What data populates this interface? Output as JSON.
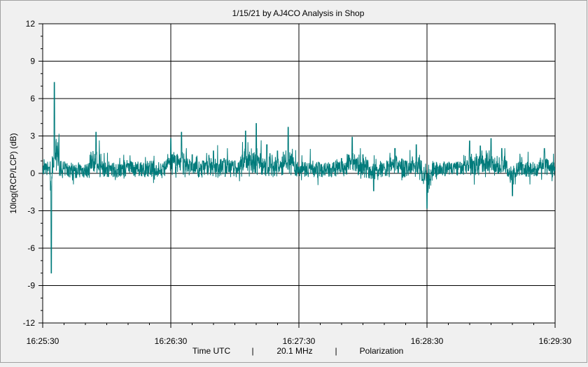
{
  "chart_data": {
    "type": "line",
    "title": "1/15/21  by  AJ4CO Analysis  in  Shop",
    "ylabel": "10log(RCP/LCP) (dB)",
    "xlabel_parts": [
      "Time UTC",
      "20.1 MHz",
      "Polarization"
    ],
    "separator": "|",
    "ylim": [
      -12,
      12
    ],
    "y_ticks": [
      "12",
      "9",
      "6",
      "3",
      "0",
      "-3",
      "-6",
      "-9",
      "-12"
    ],
    "y_tick_values": [
      12,
      9,
      6,
      3,
      0,
      -3,
      -6,
      -9,
      -12
    ],
    "xlim": [
      "16:25:30",
      "16:29:30"
    ],
    "x_ticks": [
      "16:25:30",
      "16:26:30",
      "16:27:30",
      "16:28:30",
      "16:29:30"
    ],
    "grid": true,
    "line_color": "#007b7b",
    "background_color": "#ffffff",
    "series": [
      {
        "x": [
          "16:25:30",
          "16:25:33",
          "16:25:34",
          "16:25:35",
          "16:25:35.5",
          "16:25:40",
          "16:25:45",
          "16:25:55",
          "16:26:00",
          "16:26:05",
          "16:26:10",
          "16:26:15",
          "16:26:20",
          "16:26:25",
          "16:26:30",
          "16:26:35",
          "16:26:40",
          "16:26:45",
          "16:26:50",
          "16:26:55",
          "16:27:00",
          "16:27:05",
          "16:27:10",
          "16:27:15",
          "16:27:20",
          "16:27:25",
          "16:27:30",
          "16:27:35",
          "16:27:40",
          "16:27:45",
          "16:27:50",
          "16:27:55",
          "16:28:00",
          "16:28:05",
          "16:28:10",
          "16:28:15",
          "16:28:20",
          "16:28:25",
          "16:28:30",
          "16:28:35",
          "16:28:40",
          "16:28:45",
          "16:28:50",
          "16:28:55",
          "16:29:00",
          "16:29:05",
          "16:29:10",
          "16:29:15",
          "16:29:20",
          "16:29:25",
          "16:29:30"
        ],
        "values": [
          0,
          0.5,
          -8.0,
          0.5,
          7.3,
          0.4,
          0.2,
          3.3,
          0.5,
          0.3,
          0.8,
          0.3,
          0.6,
          0.2,
          2.8,
          3.3,
          1.5,
          1.0,
          1.8,
          1.2,
          1.0,
          3.4,
          4.0,
          2.3,
          1.8,
          3.7,
          0.5,
          0.4,
          0.2,
          0.4,
          1.2,
          2.9,
          1.5,
          -1.4,
          0.5,
          2.0,
          1.0,
          2.3,
          -2.8,
          0.5,
          0.3,
          0.5,
          2.6,
          2.2,
          2.8,
          2.0,
          -1.8,
          0.7,
          0.4,
          2.0,
          0.2
        ]
      }
    ]
  }
}
